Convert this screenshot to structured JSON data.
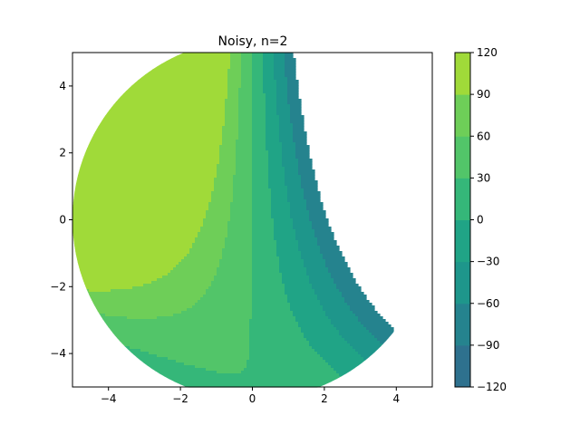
{
  "chart_data": {
    "type": "contourf",
    "title": "Noisy, n=2",
    "xlabel": "",
    "ylabel": "",
    "xlim": [
      -5,
      5
    ],
    "ylim": [
      -5,
      5
    ],
    "x_ticks": [
      -4,
      -2,
      0,
      2,
      4
    ],
    "y_ticks": [
      -4,
      -2,
      0,
      2,
      4
    ],
    "x_tick_labels": [
      "−4",
      "−2",
      "0",
      "2",
      "4"
    ],
    "y_tick_labels": [
      "−4",
      "−2",
      "0",
      "2",
      "4"
    ],
    "domain": "disk of radius 5 centered at origin",
    "field_estimate": "z ≈ -10·x·(y+5) - 3.4·x² + 29",
    "colorbar": {
      "levels": [
        -120,
        -90,
        -60,
        -30,
        0,
        30,
        60,
        90,
        120
      ],
      "tick_labels": [
        "−120",
        "−90",
        "−60",
        "−30",
        "0",
        "30",
        "60",
        "90",
        "120"
      ],
      "colors": [
        "#2e718e",
        "#25838e",
        "#1e968b",
        "#20a486",
        "#35b779",
        "#52c569",
        "#6ece58",
        "#a0da39"
      ]
    },
    "grid": false
  }
}
